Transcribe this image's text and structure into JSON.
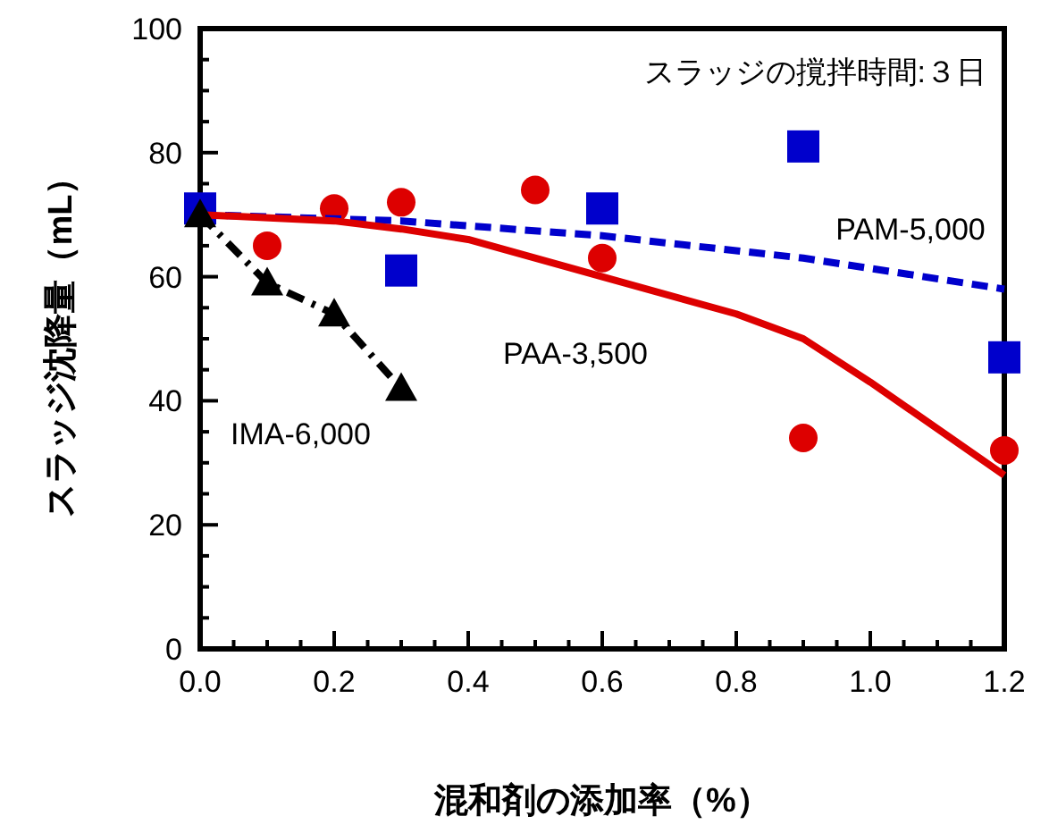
{
  "chart_data": {
    "type": "scatter",
    "xlabel": "混和剤の添加率（%）",
    "ylabel": "スラッジ沈降量（mL）",
    "annotations": [
      "スラッジの撹拌時間:３日"
    ],
    "xlim": [
      0,
      1.2
    ],
    "ylim": [
      0,
      100
    ],
    "xticks": [
      {
        "value": 0,
        "label": "0.0"
      },
      {
        "value": 0.2,
        "label": "0.2"
      },
      {
        "value": 0.4,
        "label": "0.4"
      },
      {
        "value": 0.6,
        "label": "0.6"
      },
      {
        "value": 0.8,
        "label": "0.8"
      },
      {
        "value": 1.0,
        "label": "1.0"
      },
      {
        "value": 1.2,
        "label": "1.2"
      }
    ],
    "yticks": [
      0,
      20,
      40,
      60,
      80,
      100
    ],
    "grid": false,
    "series": [
      {
        "name": "PAA-3,500",
        "marker": "circle",
        "color": "#dd0000",
        "x": [
          0.1,
          0.2,
          0.3,
          0.5,
          0.6,
          0.9,
          1.2
        ],
        "values": [
          65,
          71,
          72,
          74,
          63,
          34,
          32
        ]
      },
      {
        "name": "PAM-5,000",
        "marker": "square",
        "color": "#0000cc",
        "x": [
          0,
          0.3,
          0.6,
          0.9,
          1.2
        ],
        "values": [
          71,
          61,
          71,
          81,
          47
        ]
      },
      {
        "name": "IMA-6,000",
        "type": "line",
        "marker": "triangle",
        "line_style": "dashdot",
        "color": "#000000",
        "x": [
          0,
          0.1,
          0.2,
          0.3
        ],
        "values": [
          70,
          59,
          54,
          42
        ]
      },
      {
        "type": "line",
        "marker": "none",
        "line_style": "solid",
        "color": "#dd0000",
        "x": [
          0,
          0.2,
          0.3,
          0.4,
          0.6,
          0.8,
          0.9,
          1.0,
          1.2
        ],
        "values": [
          70,
          69,
          67.7,
          66,
          60,
          54,
          50,
          43,
          28
        ]
      },
      {
        "type": "line",
        "marker": "none",
        "line_style": "dashed",
        "color": "#0000cc",
        "x": [
          0,
          0.3,
          0.6,
          0.9,
          1.2
        ],
        "values": [
          70,
          69,
          66.6,
          63,
          58
        ]
      }
    ]
  }
}
